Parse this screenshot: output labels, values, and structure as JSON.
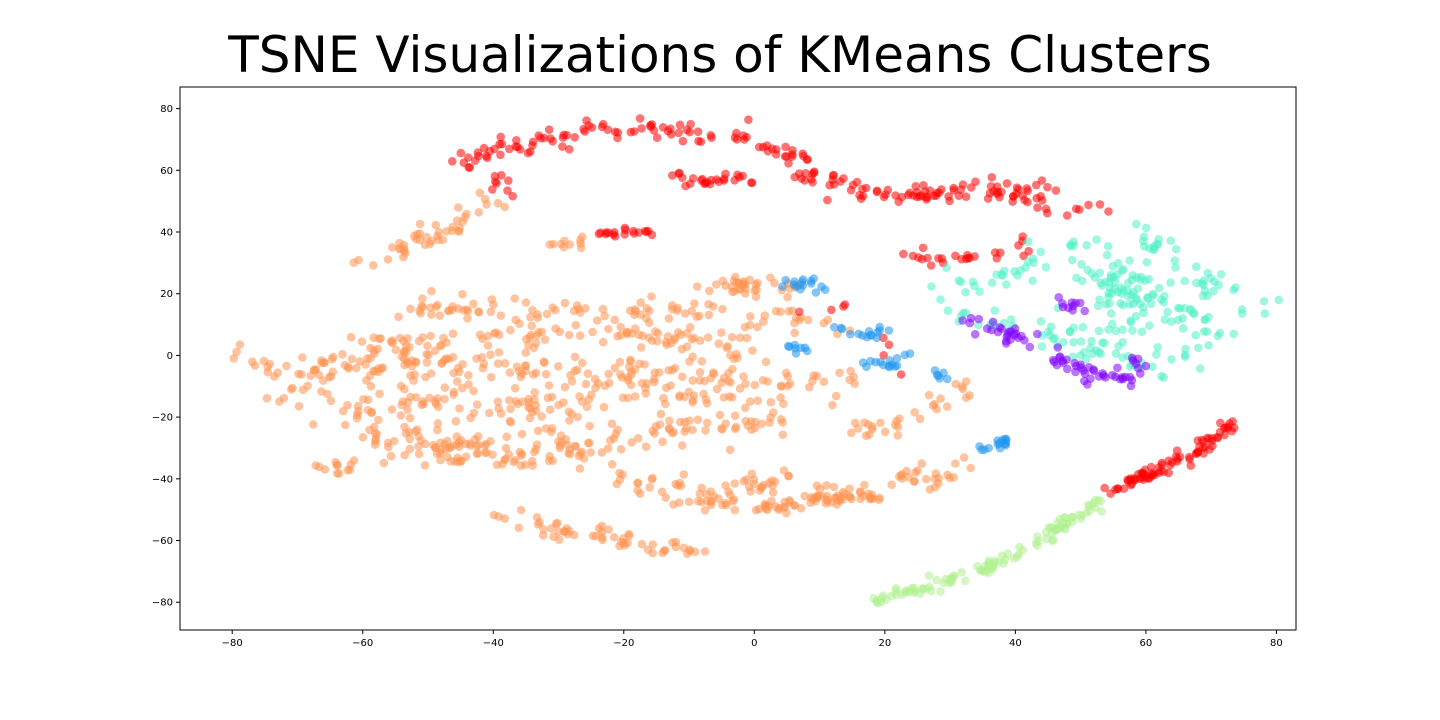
{
  "chart_data": {
    "type": "scatter",
    "title": "TSNE Visualizations of KMeans Clusters",
    "xlabel": "",
    "ylabel": "",
    "xlim": [
      -88,
      83
    ],
    "ylim": [
      -89,
      87
    ],
    "xticks": [
      -80,
      -60,
      -40,
      -20,
      0,
      20,
      40,
      60,
      80
    ],
    "yticks": [
      -80,
      -60,
      -40,
      -20,
      0,
      20,
      40,
      60,
      80
    ],
    "grid": false,
    "legend": "none",
    "clusters": [
      {
        "color": "#ff9350",
        "regions": [
          {
            "points": [
              [
                -80,
                0
              ],
              [
                -72,
                -2
              ],
              [
                -66,
                -5
              ],
              [
                -60,
                -4
              ],
              [
                -55,
                -2
              ],
              [
                -50,
                -5
              ],
              [
                -44,
                -3
              ],
              [
                -38,
                -4
              ],
              [
                -32,
                -6
              ],
              [
                -26,
                -4
              ],
              [
                -20,
                -6
              ],
              [
                -14,
                -5
              ],
              [
                -8,
                -3
              ],
              [
                -3,
                -5
              ]
            ],
            "spread": 3.5,
            "count": 150
          },
          {
            "points": [
              [
                -72,
                -12
              ],
              [
                -64,
                -15
              ],
              [
                -56,
                -14
              ],
              [
                -48,
                -16
              ],
              [
                -40,
                -14
              ],
              [
                -32,
                -17
              ],
              [
                -24,
                -15
              ],
              [
                -16,
                -13
              ],
              [
                -8,
                -14
              ],
              [
                0,
                -12
              ],
              [
                6,
                -10
              ],
              [
                12,
                -8
              ]
            ],
            "spread": 3.5,
            "count": 150
          },
          {
            "points": [
              [
                -66,
                -22
              ],
              [
                -58,
                -25
              ],
              [
                -50,
                -27
              ],
              [
                -42,
                -28
              ],
              [
                -34,
                -26
              ],
              [
                -26,
                -28
              ],
              [
                -18,
                -26
              ],
              [
                -10,
                -24
              ],
              [
                -2,
                -22
              ],
              [
                6,
                -20
              ]
            ],
            "spread": 3.2,
            "count": 120
          },
          {
            "points": [
              [
                -56,
                -30
              ],
              [
                -48,
                -32
              ],
              [
                -40,
                -34
              ],
              [
                -32,
                -32
              ],
              [
                -24,
                -33
              ]
            ],
            "spread": 2.8,
            "count": 60
          },
          {
            "points": [
              [
                -52,
                16
              ],
              [
                -44,
                15
              ],
              [
                -36,
                16
              ],
              [
                -28,
                15
              ],
              [
                -20,
                15
              ],
              [
                -12,
                14
              ],
              [
                -6,
                13
              ]
            ],
            "spread": 2.2,
            "count": 70
          },
          {
            "points": [
              [
                -46,
                6
              ],
              [
                -38,
                8
              ],
              [
                -30,
                6
              ],
              [
                -22,
                8
              ],
              [
                -14,
                6
              ],
              [
                -6,
                4
              ],
              [
                0,
                2
              ]
            ],
            "spread": 2.8,
            "count": 80
          },
          {
            "points": [
              [
                -60,
                3
              ],
              [
                -54,
                2
              ],
              [
                -48,
                1
              ]
            ],
            "spread": 2.5,
            "count": 30
          },
          {
            "points": [
              [
                -38,
                -52
              ],
              [
                -30,
                -56
              ],
              [
                -22,
                -59
              ],
              [
                -14,
                -62
              ],
              [
                -8,
                -64
              ]
            ],
            "spread": 1.6,
            "count": 55
          },
          {
            "points": [
              [
                -10,
                -46
              ],
              [
                -4,
                -48
              ],
              [
                2,
                -49
              ],
              [
                8,
                -48
              ],
              [
                14,
                -46
              ]
            ],
            "spread": 1.8,
            "count": 55
          },
          {
            "points": [
              [
                -20,
                -40
              ],
              [
                -14,
                -42
              ],
              [
                -6,
                -44
              ],
              [
                0,
                -41
              ],
              [
                6,
                -40
              ]
            ],
            "spread": 2.2,
            "count": 45
          },
          {
            "points": [
              [
                10,
                -44
              ],
              [
                14,
                -46
              ],
              [
                18,
                -45
              ]
            ],
            "spread": 2.2,
            "count": 30
          },
          {
            "points": [
              [
                -6,
                22
              ],
              [
                0,
                24
              ],
              [
                6,
                22
              ]
            ],
            "spread": 2.5,
            "count": 35
          },
          {
            "points": [
              [
                -2,
                10
              ],
              [
                6,
                12
              ],
              [
                12,
                10
              ]
            ],
            "spread": 2.2,
            "count": 20
          },
          {
            "points": [
              [
                -60,
                28
              ],
              [
                -54,
                34
              ],
              [
                -48,
                40
              ],
              [
                -44,
                46
              ],
              [
                -40,
                50
              ]
            ],
            "spread": 2.0,
            "count": 45
          },
          {
            "points": [
              [
                -67,
                -35
              ],
              [
                -62,
                -37
              ]
            ],
            "spread": 1.5,
            "count": 12
          },
          {
            "points": [
              [
                16,
                -26
              ],
              [
                22,
                -22
              ],
              [
                28,
                -16
              ],
              [
                32,
                -10
              ]
            ],
            "spread": 2.0,
            "count": 30
          },
          {
            "points": [
              [
                22,
                -38
              ],
              [
                26,
                -42
              ],
              [
                30,
                -38
              ],
              [
                34,
                -35
              ]
            ],
            "spread": 1.8,
            "count": 25
          },
          {
            "points": [
              [
                -32,
                35
              ],
              [
                -26,
                38
              ]
            ],
            "spread": 1.0,
            "count": 10
          }
        ]
      },
      {
        "color": "#ff0000",
        "regions": [
          {
            "points": [
              [
                -46,
                60
              ],
              [
                -40,
                66
              ],
              [
                -32,
                71
              ],
              [
                -24,
                73
              ],
              [
                -16,
                74
              ],
              [
                -8,
                72
              ],
              [
                0,
                70
              ],
              [
                4,
                66
              ],
              [
                8,
                60
              ],
              [
                12,
                56
              ],
              [
                18,
                52
              ],
              [
                24,
                52
              ],
              [
                30,
                54
              ],
              [
                36,
                54
              ],
              [
                42,
                52
              ],
              [
                48,
                48
              ],
              [
                52,
                46
              ]
            ],
            "spread": 1.8,
            "count": 200
          },
          {
            "points": [
              [
                -12,
                58
              ],
              [
                -6,
                56
              ],
              [
                0,
                58
              ]
            ],
            "spread": 1.5,
            "count": 25
          },
          {
            "points": [
              [
                -24,
                39
              ],
              [
                -20,
                40
              ],
              [
                -16,
                40
              ]
            ],
            "spread": 0.8,
            "count": 18
          },
          {
            "points": [
              [
                53,
                -45
              ],
              [
                58,
                -41
              ],
              [
                63,
                -36
              ],
              [
                68,
                -31
              ],
              [
                73,
                -21
              ]
            ],
            "spread": 1.0,
            "count": 80
          },
          {
            "points": [
              [
                24,
                34
              ],
              [
                28,
                30
              ],
              [
                38,
                34
              ],
              [
                42,
                37
              ],
              [
                46,
                40
              ]
            ],
            "spread": 1.5,
            "count": 25
          },
          {
            "points": [
              [
                -40,
                58
              ],
              [
                -38,
                53
              ]
            ],
            "spread": 1.5,
            "count": 8
          },
          {
            "points": [
              [
                8,
                13
              ],
              [
                14,
                16
              ],
              [
                26,
                -8
              ]
            ],
            "spread": 1.0,
            "count": 8
          }
        ]
      },
      {
        "color": "#50f0c8",
        "regions": [
          {
            "points": [
              [
                55,
                40
              ],
              [
                62,
                34
              ],
              [
                68,
                26
              ],
              [
                72,
                18
              ],
              [
                72,
                10
              ],
              [
                68,
                4
              ],
              [
                62,
                -2
              ],
              [
                58,
                -6
              ],
              [
                56,
                4
              ],
              [
                56,
                16
              ],
              [
                58,
                26
              ],
              [
                62,
                20
              ],
              [
                66,
                10
              ],
              [
                52,
                30
              ],
              [
                60,
                10
              ]
            ],
            "spread": 3.2,
            "count": 170
          },
          {
            "points": [
              [
                30,
                26
              ],
              [
                36,
                22
              ],
              [
                42,
                28
              ],
              [
                46,
                36
              ],
              [
                50,
                38
              ]
            ],
            "spread": 2.2,
            "count": 30
          },
          {
            "points": [
              [
                44,
                10
              ],
              [
                48,
                4
              ],
              [
                52,
                0
              ]
            ],
            "spread": 2.0,
            "count": 25
          },
          {
            "points": [
              [
                28,
                16
              ],
              [
                32,
                14
              ],
              [
                36,
                10
              ],
              [
                40,
                12
              ]
            ],
            "spread": 1.6,
            "count": 15
          }
        ]
      },
      {
        "color": "#8000ff",
        "regions": [
          {
            "points": [
              [
                32,
                12
              ],
              [
                36,
                8
              ],
              [
                40,
                6
              ],
              [
                46,
                0
              ],
              [
                52,
                -6
              ],
              [
                56,
                -8
              ],
              [
                58,
                -2
              ]
            ],
            "spread": 1.6,
            "count": 70
          },
          {
            "points": [
              [
                46,
                18
              ],
              [
                50,
                14
              ]
            ],
            "spread": 1.2,
            "count": 10
          }
        ]
      },
      {
        "color": "#1e96f0",
        "regions": [
          {
            "points": [
              [
                6,
                24
              ],
              [
                10,
                22
              ]
            ],
            "spread": 1.2,
            "count": 15
          },
          {
            "points": [
              [
                12,
                9
              ],
              [
                18,
                7
              ],
              [
                22,
                8
              ]
            ],
            "spread": 1.0,
            "count": 15
          },
          {
            "points": [
              [
                14,
                -2
              ],
              [
                20,
                -3
              ],
              [
                24,
                0
              ]
            ],
            "spread": 1.3,
            "count": 15
          },
          {
            "points": [
              [
                34,
                -32
              ],
              [
                38,
                -28
              ],
              [
                40,
                -27
              ]
            ],
            "spread": 1.0,
            "count": 15
          },
          {
            "points": [
              [
                4,
                4
              ],
              [
                8,
                2
              ]
            ],
            "spread": 1.0,
            "count": 8
          },
          {
            "points": [
              [
                28,
                -6
              ],
              [
                30,
                -8
              ]
            ],
            "spread": 1.0,
            "count": 6
          }
        ]
      },
      {
        "color": "#b0f090",
        "regions": [
          {
            "points": [
              [
                18,
                -80
              ],
              [
                26,
                -75
              ],
              [
                34,
                -70
              ],
              [
                42,
                -62
              ],
              [
                48,
                -54
              ],
              [
                53,
                -47
              ]
            ],
            "spread": 0.9,
            "count": 110
          }
        ]
      }
    ]
  }
}
